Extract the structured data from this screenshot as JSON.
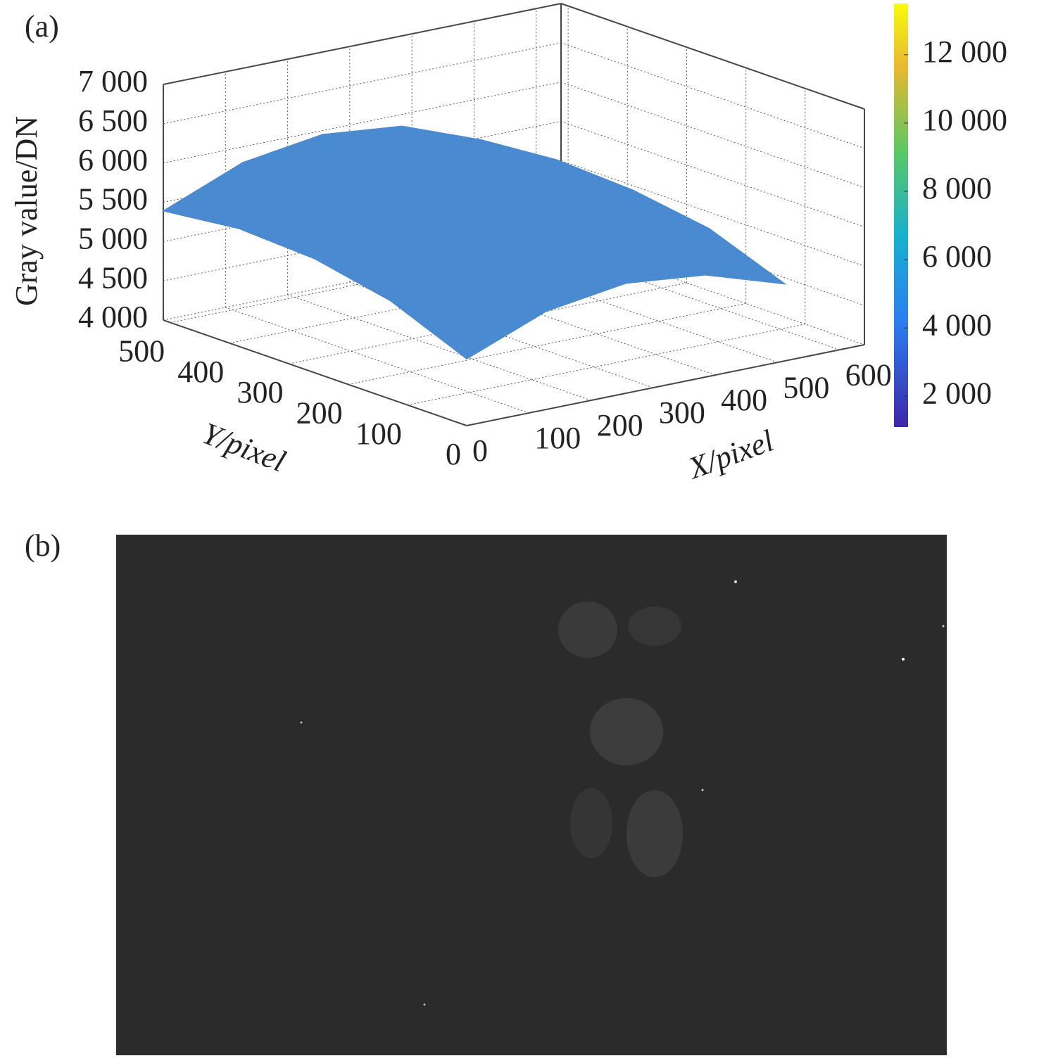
{
  "chart_data": {
    "type": "surface3d",
    "panel_label": "(a)",
    "zlabel": "Gray value/DN",
    "xlabel": "X/pixel",
    "ylabel": "Y/pixel",
    "xlim": [
      0,
      640
    ],
    "ylim": [
      0,
      512
    ],
    "zlim": [
      4000,
      7000
    ],
    "xticks": [
      0,
      100,
      200,
      300,
      400,
      500,
      600
    ],
    "yticks": [
      0,
      100,
      200,
      300,
      400,
      500
    ],
    "zticks": [
      {
        "value": 4000,
        "label": "4 000"
      },
      {
        "value": 4500,
        "label": "4 500"
      },
      {
        "value": 5000,
        "label": "5 000"
      },
      {
        "value": 5500,
        "label": "5 500"
      },
      {
        "value": 6000,
        "label": "6 000"
      },
      {
        "value": 6500,
        "label": "6 500"
      },
      {
        "value": 7000,
        "label": "7 000"
      }
    ],
    "grid": true,
    "surface": {
      "color": "#4a8ad0",
      "x": [
        0,
        128,
        256,
        384,
        512
      ],
      "y": [
        0,
        128,
        256,
        384,
        512
      ],
      "z": [
        [
          4850,
          5250,
          5400,
          5300,
          4980
        ],
        [
          5250,
          5700,
          5850,
          5750,
          5350
        ],
        [
          5450,
          5900,
          6050,
          5950,
          5500
        ],
        [
          5500,
          5950,
          6100,
          6000,
          5550
        ],
        [
          5390,
          5800,
          5950,
          5850,
          5470
        ]
      ]
    },
    "colorbar": {
      "lim": [
        1100,
        13500
      ],
      "ticks": [
        {
          "value": 2000,
          "label": "2 000"
        },
        {
          "value": 4000,
          "label": "4 000"
        },
        {
          "value": 6000,
          "label": "6 000"
        },
        {
          "value": 8000,
          "label": "8 000"
        },
        {
          "value": 10000,
          "label": "10 000"
        },
        {
          "value": 12000,
          "label": "12 000"
        }
      ]
    }
  },
  "image_panel": {
    "label": "(b)"
  }
}
